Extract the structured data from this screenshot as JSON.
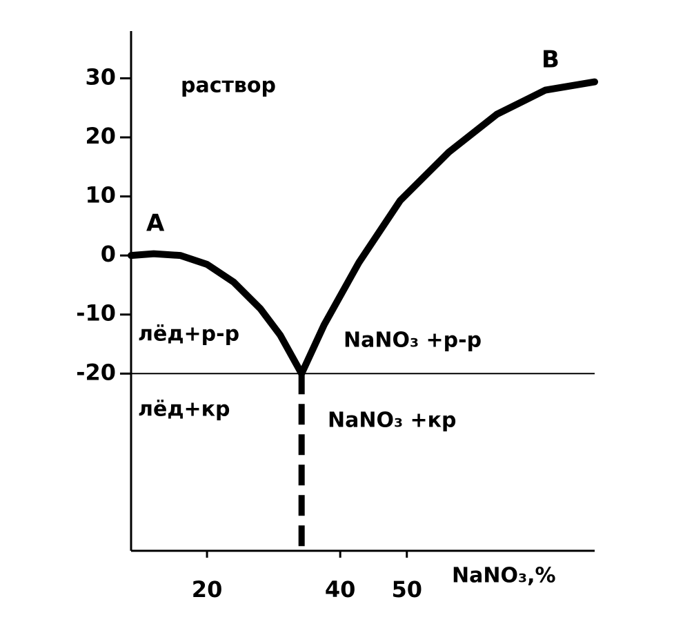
{
  "chart_data": {
    "type": "line",
    "xlabel": "NaNO₃,%",
    "xlim": [
      8.6,
      78.2
    ],
    "xticks": [
      20,
      40,
      50
    ],
    "ylim": [
      -50,
      38
    ],
    "yticks": [
      30,
      20,
      10,
      0,
      -10,
      -20
    ],
    "color": "#000000",
    "series": [
      {
        "x": [
          8.6,
          12,
          16,
          20,
          24,
          28,
          31,
          34.2
        ],
        "values": [
          0,
          0.3,
          0,
          -1.5,
          -4.5,
          -9,
          -13.5,
          -20
        ]
      },
      {
        "x": [
          34.2,
          37.6,
          42.8,
          49.0,
          56.3,
          63.5,
          70.8,
          78.2
        ],
        "values": [
          -20,
          -11.7,
          -1.2,
          9.3,
          17.5,
          23.9,
          28.0,
          29.4
        ]
      }
    ],
    "eutectic": {
      "x": 34.2,
      "y": -20
    },
    "annotations": [
      "A",
      "B",
      "раствор",
      "лёд+р-р",
      "NaNO₃ +р-р",
      "лёд+кр",
      "NaNO₃ +кр"
    ]
  }
}
